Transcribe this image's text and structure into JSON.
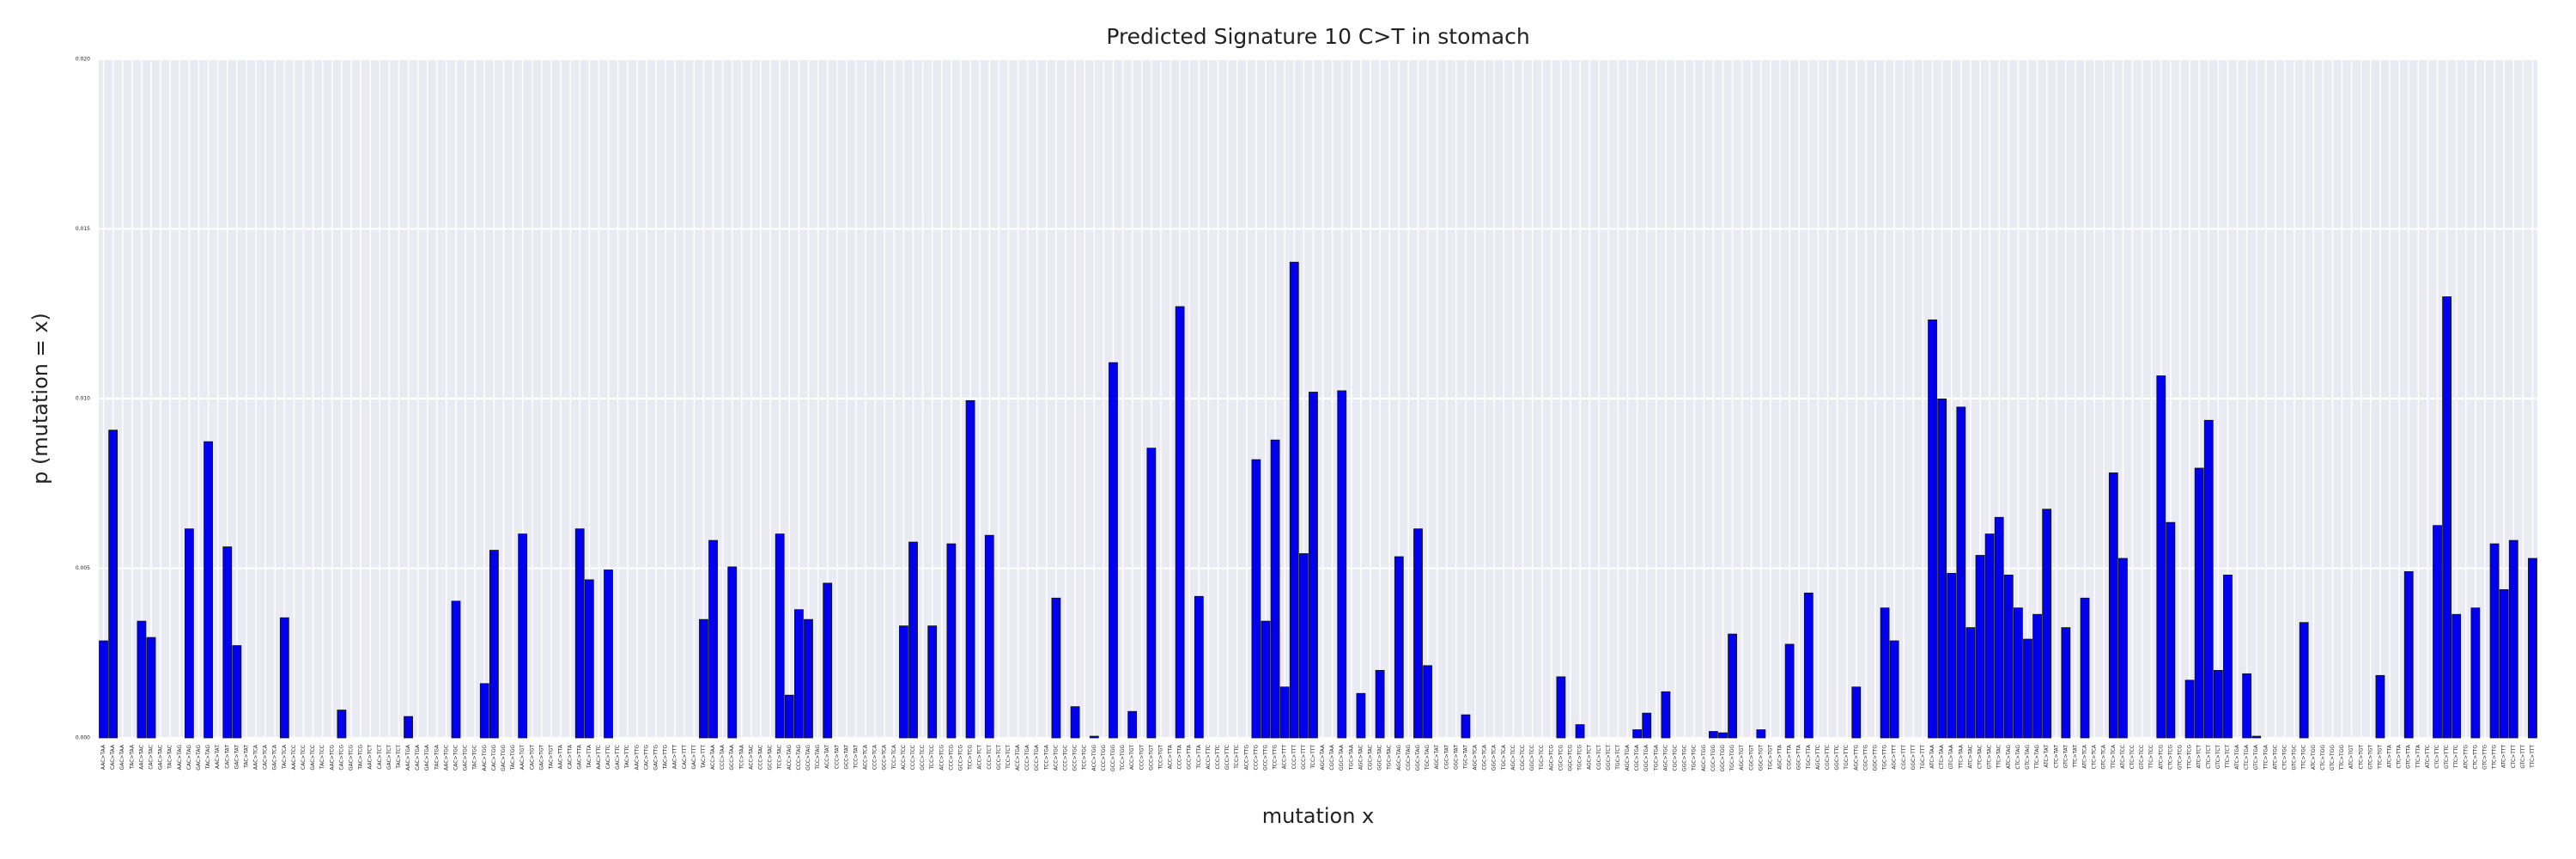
{
  "chart_data": {
    "type": "bar",
    "title": "Predicted Signature 10 C>T in stomach",
    "x_label": "mutation x",
    "y_label": "p (mutation = x)",
    "color": "#0000ee",
    "grid": true,
    "categories": [
      "AAC>TAA",
      "CAC>TAA",
      "GAC>TAA",
      "TAC>TAA",
      "AAC>TAC",
      "CAC>TAC",
      "GAC>TAC",
      "TAC>TAC",
      "AAC>TAG",
      "CAC>TAG",
      "GAC>TAG",
      "TAC>TAG",
      "AAC>TAT",
      "CAC>TAT",
      "GAC>TAT",
      "TAC>TAT",
      "AAC>TCA",
      "CAC>TCA",
      "GAC>TCA",
      "TAC>TCA",
      "AAC>TCC",
      "CAC>TCC",
      "GAC>TCC",
      "TAC>TCC",
      "AAC>TCG",
      "CAC>TCG",
      "GAC>TCG",
      "TAC>TCG",
      "AAC>TCT",
      "CAC>TCT",
      "GAC>TCT",
      "TAC>TCT",
      "AAC>TGA",
      "CAC>TGA",
      "GAC>TGA",
      "TAC>TGA",
      "AAC>TGC",
      "CAC>TGC",
      "GAC>TGC",
      "TAC>TGC",
      "AAC>TGG",
      "CAC>TGG",
      "GAC>TGG",
      "TAC>TGG",
      "AAC>TGT",
      "CAC>TGT",
      "GAC>TGT",
      "TAC>TGT",
      "AAC>TTA",
      "CAC>TTA",
      "GAC>TTA",
      "TAC>TTA",
      "AAC>TTC",
      "CAC>TTC",
      "GAC>TTC",
      "TAC>TTC",
      "AAC>TTG",
      "CAC>TTG",
      "GAC>TTG",
      "TAC>TTG",
      "AAC>TTT",
      "CAC>TTT",
      "GAC>TTT",
      "TAC>TTT",
      "ACC>TAA",
      "CCC>TAA",
      "GCC>TAA",
      "TCC>TAA",
      "ACC>TAC",
      "CCC>TAC",
      "GCC>TAC",
      "TCC>TAC",
      "ACC>TAG",
      "CCC>TAG",
      "GCC>TAG",
      "TCC>TAG",
      "ACC>TAT",
      "CCC>TAT",
      "GCC>TAT",
      "TCC>TAT",
      "ACC>TCA",
      "CCC>TCA",
      "GCC>TCA",
      "TCC>TCA",
      "ACC>TCC",
      "CCC>TCC",
      "GCC>TCC",
      "TCC>TCC",
      "ACC>TCG",
      "CCC>TCG",
      "GCC>TCG",
      "TCC>TCG",
      "ACC>TCT",
      "CCC>TCT",
      "GCC>TCT",
      "TCC>TCT",
      "ACC>TGA",
      "CCC>TGA",
      "GCC>TGA",
      "TCC>TGA",
      "ACC>TGC",
      "CCC>TGC",
      "GCC>TGC",
      "TCC>TGC",
      "ACC>TGG",
      "CCC>TGG",
      "GCC>TGG",
      "TCC>TGG",
      "ACC>TGT",
      "CCC>TGT",
      "GCC>TGT",
      "TCC>TGT",
      "ACC>TTA",
      "CCC>TTA",
      "GCC>TTA",
      "TCC>TTA",
      "ACC>TTC",
      "CCC>TTC",
      "GCC>TTC",
      "TCC>TTC",
      "ACC>TTG",
      "CCC>TTG",
      "GCC>TTG",
      "TCC>TTG",
      "ACC>TTT",
      "CCC>TTT",
      "GCC>TTT",
      "TCC>TTT",
      "AGC>TAA",
      "CGC>TAA",
      "GGC>TAA",
      "TGC>TAA",
      "AGC>TAC",
      "CGC>TAC",
      "GGC>TAC",
      "TGC>TAC",
      "AGC>TAG",
      "CGC>TAG",
      "GGC>TAG",
      "TGC>TAG",
      "AGC>TAT",
      "CGC>TAT",
      "GGC>TAT",
      "TGC>TAT",
      "AGC>TCA",
      "CGC>TCA",
      "GGC>TCA",
      "TGC>TCA",
      "AGC>TCC",
      "CGC>TCC",
      "GGC>TCC",
      "TGC>TCC",
      "AGC>TCG",
      "CGC>TCG",
      "GGC>TCG",
      "TGC>TCG",
      "AGC>TCT",
      "CGC>TCT",
      "GGC>TCT",
      "TGC>TCT",
      "AGC>TGA",
      "CGC>TGA",
      "GGC>TGA",
      "TGC>TGA",
      "AGC>TGC",
      "CGC>TGC",
      "GGC>TGC",
      "TGC>TGC",
      "AGC>TGG",
      "CGC>TGG",
      "GGC>TGG",
      "TGC>TGG",
      "AGC>TGT",
      "CGC>TGT",
      "GGC>TGT",
      "TGC>TGT",
      "AGC>TTA",
      "CGC>TTA",
      "GGC>TTA",
      "TGC>TTA",
      "AGC>TTC",
      "CGC>TTC",
      "GGC>TTC",
      "TGC>TTC",
      "AGC>TTG",
      "CGC>TTG",
      "GGC>TTG",
      "TGC>TTG",
      "AGC>TTT",
      "CGC>TTT",
      "GGC>TTT",
      "TGC>TTT",
      "ATC>TAA",
      "CTC>TAA",
      "GTC>TAA",
      "TTC>TAA",
      "ATC>TAC",
      "CTC>TAC",
      "GTC>TAC",
      "TTC>TAC",
      "ATC>TAG",
      "CTC>TAG",
      "GTC>TAG",
      "TTC>TAG",
      "ATC>TAT",
      "CTC>TAT",
      "GTC>TAT",
      "TTC>TAT",
      "ATC>TCA",
      "CTC>TCA",
      "GTC>TCA",
      "TTC>TCA",
      "ATC>TCC",
      "CTC>TCC",
      "GTC>TCC",
      "TTC>TCC",
      "ATC>TCG",
      "CTC>TCG",
      "GTC>TCG",
      "TTC>TCG",
      "ATC>TCT",
      "CTC>TCT",
      "GTC>TCT",
      "TTC>TCT",
      "ATC>TGA",
      "CTC>TGA",
      "GTC>TGA",
      "TTC>TGA",
      "ATC>TGC",
      "CTC>TGC",
      "GTC>TGC",
      "TTC>TGC",
      "ATC>TGG",
      "CTC>TGG",
      "GTC>TGG",
      "TTC>TGG",
      "ATC>TGT",
      "CTC>TGT",
      "GTC>TGT",
      "TTC>TGT",
      "ATC>TTA",
      "CTC>TTA",
      "GTC>TTA",
      "TTC>TTA",
      "ATC>TTC",
      "CTC>TTC",
      "GTC>TTC",
      "TTC>TTC",
      "ATC>TTG",
      "CTC>TTG",
      "GTC>TTG",
      "TTC>TTG",
      "ATC>TTT",
      "CTC>TTT",
      "GTC>TTT",
      "TTC>TTT"
    ],
    "values": [
      0.00286,
      0.00907,
      0,
      0,
      0.00344,
      0.00296,
      0,
      0,
      0,
      0.00616,
      0,
      0.00873,
      0,
      0.00563,
      0.00272,
      0,
      0,
      0,
      0,
      0.00354,
      0,
      0,
      0,
      0,
      0,
      0.00082,
      0,
      0,
      0,
      0,
      0,
      0,
      0.00063,
      0,
      0,
      0,
      0,
      0.00403,
      0,
      0,
      0.0016,
      0.00553,
      0,
      0,
      0.00601,
      0,
      0,
      0,
      0,
      0,
      0.00616,
      0.00466,
      0,
      0.00495,
      0,
      0,
      0,
      0,
      0,
      0,
      0,
      0,
      0,
      0.00349,
      0.00582,
      0,
      0.00504,
      0,
      0,
      0,
      0,
      0.00601,
      0.00126,
      0.00378,
      0.00349,
      0,
      0.00456,
      0,
      0,
      0,
      0,
      0,
      0,
      0,
      0.0033,
      0.00577,
      0,
      0.0033,
      0,
      0.00572,
      0,
      0.00994,
      0,
      0.00597,
      0,
      0,
      0,
      0,
      0,
      0,
      0.00412,
      0,
      0.00092,
      0,
      5e-05,
      0,
      0.01106,
      0,
      0.00078,
      0,
      0.00854,
      0,
      0,
      0.01271,
      0,
      0.00417,
      0,
      0,
      0,
      0,
      0,
      0.0082,
      0.00344,
      0.00878,
      0.0015,
      0.01402,
      0.00543,
      0.01019,
      0,
      0,
      0.01023,
      0,
      0.00131,
      0,
      0.00199,
      0,
      0.00534,
      0,
      0.00616,
      0.00213,
      0,
      0,
      0,
      0.00068,
      0,
      0,
      0,
      0,
      0,
      0,
      0,
      0,
      0,
      0.0018,
      0,
      0.00039,
      0,
      0,
      0,
      0,
      0,
      0.00024,
      0.00073,
      0,
      0.00136,
      0,
      0,
      0,
      0,
      0.00019,
      0.00015,
      0.00306,
      0,
      0,
      0.00024,
      0,
      0,
      0.00276,
      0,
      0.00427,
      0,
      0,
      0,
      0,
      0.0015,
      0,
      0,
      0.00383,
      0.00286,
      0,
      0,
      0,
      0.01232,
      0.00999,
      0.00485,
      0.00975,
      0.00325,
      0.00538,
      0.00601,
      0.0065,
      0.0048,
      0.00383,
      0.00291,
      0.00364,
      0.00674,
      0,
      0.00325,
      0,
      0.00412,
      0,
      0,
      0.00781,
      0.00529,
      0,
      0,
      0,
      0.01067,
      0.00635,
      0,
      0.0017,
      0.00795,
      0.00936,
      0.00199,
      0.0048,
      0,
      0.00189,
      5e-05,
      0,
      0,
      0,
      0,
      0.0034,
      0,
      0,
      0,
      0,
      0,
      0,
      0,
      0.00184,
      0,
      0,
      0.0049,
      0,
      0,
      0.00626,
      0.013,
      0.00364,
      0,
      0.00383,
      0,
      0.00572,
      0.00437,
      0.00582,
      0,
      0.00529
    ],
    "ylim": [
      0,
      0.02
    ],
    "yticks": [
      {
        "value": 0,
        "label": "0.000"
      },
      {
        "value": 0.005,
        "label": "0.005"
      },
      {
        "value": 0.01,
        "label": "0.010"
      },
      {
        "value": 0.015,
        "label": "0.015"
      },
      {
        "value": 0.02,
        "label": "0.020"
      }
    ]
  }
}
